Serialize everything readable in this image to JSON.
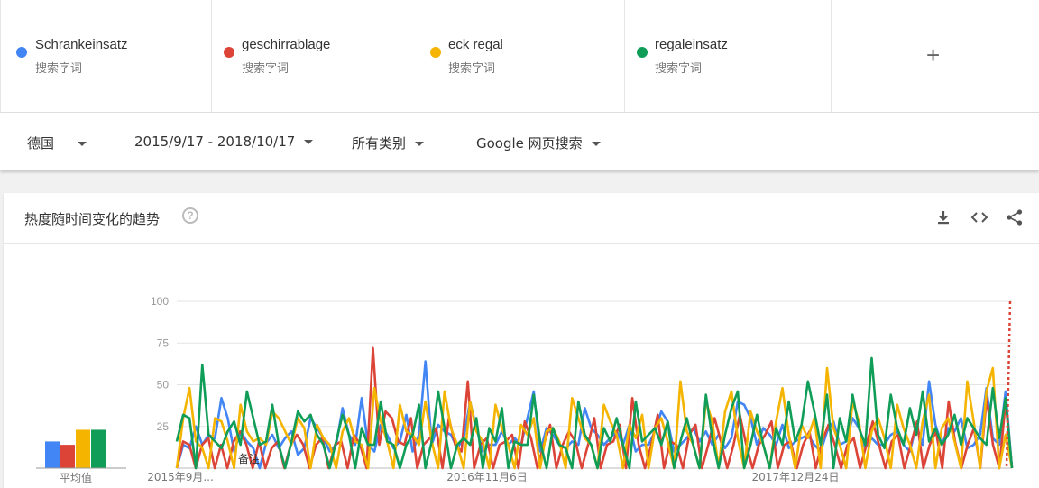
{
  "terms": [
    {
      "name": "Schrankeinsatz",
      "sub": "搜索字词",
      "color": "#4285f4"
    },
    {
      "name": "geschirrablage",
      "sub": "搜索字词",
      "color": "#db4437"
    },
    {
      "name": "eck regal",
      "sub": "搜索字词",
      "color": "#f4b400"
    },
    {
      "name": "regaleinsatz",
      "sub": "搜索字词",
      "color": "#0f9d58"
    }
  ],
  "add_term": "+",
  "filters": {
    "region": "德国",
    "date_range": "2015/9/17 - 2018/10/17",
    "category": "所有类别",
    "search_type": "Google 网页搜索"
  },
  "card": {
    "title": "热度随时间变化的趋势",
    "help": "?",
    "download_icon": "download-icon",
    "embed_icon": "embed-icon",
    "share_icon": "share-icon"
  },
  "avg_label": "平均值",
  "note_label": "备注",
  "chart_data": {
    "type": "line",
    "ylim": [
      0,
      100
    ],
    "y_ticks": [
      25,
      50,
      75,
      100
    ],
    "x_tick_labels": [
      "2015年9月...",
      "2016年11月6日",
      "2017年12月24日"
    ],
    "averages": [
      16,
      14,
      23,
      23
    ],
    "series": [
      {
        "name": "Schrankeinsatz",
        "color": "#4285f4",
        "values": [
          0,
          14,
          12,
          25,
          14,
          20,
          18,
          42,
          30,
          10,
          22,
          16,
          12,
          0,
          15,
          20,
          12,
          18,
          22,
          8,
          12,
          30,
          24,
          18,
          10,
          14,
          36,
          20,
          14,
          42,
          14,
          10,
          26,
          20,
          12,
          16,
          32,
          10,
          20,
          64,
          14,
          26,
          22,
          20,
          12,
          18,
          40,
          24,
          10,
          14,
          14,
          22,
          14,
          18,
          14,
          30,
          46,
          10,
          24,
          20,
          14,
          12,
          16,
          14,
          36,
          24,
          20,
          14,
          18,
          22,
          14,
          26,
          10,
          14,
          14,
          22,
          34,
          28,
          10,
          14,
          18,
          24,
          16,
          22,
          14,
          20,
          12,
          18,
          40,
          38,
          30,
          14,
          24,
          20,
          14,
          26,
          12,
          16,
          18,
          20,
          14,
          10,
          22,
          28,
          14,
          16,
          30,
          24,
          12,
          18,
          14,
          14,
          20,
          22,
          14,
          10,
          26,
          14,
          52,
          26,
          14,
          24,
          22,
          30,
          12,
          14,
          20,
          48,
          18,
          14,
          46,
          0
        ]
      },
      {
        "name": "geschirrablage",
        "color": "#db4437",
        "values": [
          0,
          16,
          14,
          0,
          14,
          18,
          0,
          14,
          0,
          16,
          22,
          14,
          0,
          16,
          0,
          12,
          16,
          0,
          14,
          20,
          14,
          0,
          14,
          18,
          0,
          14,
          16,
          0,
          20,
          14,
          0,
          72,
          14,
          34,
          30,
          16,
          14,
          30,
          0,
          14,
          18,
          24,
          0,
          30,
          14,
          10,
          52,
          0,
          14,
          18,
          0,
          14,
          16,
          20,
          0,
          28,
          18,
          0,
          14,
          26,
          0,
          14,
          22,
          16,
          0,
          14,
          30,
          0,
          14,
          16,
          26,
          0,
          42,
          14,
          0,
          14,
          32,
          0,
          16,
          14,
          0,
          20,
          26,
          0,
          14,
          30,
          16,
          0,
          14,
          32,
          14,
          0,
          14,
          20,
          28,
          0,
          14,
          16,
          0,
          14,
          22,
          0,
          16,
          26,
          14,
          0,
          14,
          18,
          0,
          14,
          28,
          14,
          0,
          16,
          20,
          0,
          14,
          28,
          0,
          14,
          22,
          0,
          40,
          16,
          0,
          14,
          24,
          0,
          42,
          14,
          0,
          40,
          0
        ]
      },
      {
        "name": "eck regal",
        "color": "#f4b400",
        "values": [
          0,
          30,
          48,
          16,
          12,
          0,
          30,
          28,
          16,
          0,
          38,
          22,
          16,
          18,
          14,
          34,
          30,
          22,
          14,
          30,
          24,
          0,
          26,
          18,
          14,
          0,
          22,
          30,
          16,
          14,
          0,
          48,
          28,
          16,
          0,
          38,
          22,
          20,
          14,
          40,
          16,
          0,
          46,
          24,
          14,
          0,
          40,
          22,
          16,
          0,
          38,
          24,
          14,
          0,
          26,
          20,
          30,
          0,
          22,
          24,
          16,
          0,
          42,
          30,
          18,
          14,
          0,
          38,
          28,
          20,
          0,
          26,
          18,
          32,
          0,
          24,
          30,
          16,
          0,
          52,
          22,
          14,
          0,
          40,
          28,
          0,
          34,
          46,
          18,
          0,
          34,
          22,
          14,
          0,
          28,
          48,
          20,
          0,
          26,
          18,
          30,
          0,
          60,
          24,
          14,
          0,
          40,
          28,
          0,
          22,
          30,
          18,
          0,
          38,
          24,
          14,
          0,
          28,
          44,
          0,
          24,
          30,
          16,
          0,
          52,
          28,
          0,
          46,
          60,
          0,
          20,
          0
        ]
      },
      {
        "name": "regaleinsatz",
        "color": "#0f9d58",
        "values": [
          16,
          32,
          30,
          0,
          62,
          20,
          16,
          12,
          22,
          28,
          14,
          46,
          30,
          14,
          16,
          38,
          14,
          0,
          16,
          34,
          28,
          32,
          20,
          14,
          0,
          16,
          32,
          20,
          0,
          24,
          14,
          14,
          40,
          16,
          14,
          0,
          14,
          20,
          38,
          0,
          16,
          46,
          24,
          0,
          14,
          18,
          14,
          30,
          0,
          24,
          16,
          36,
          0,
          16,
          14,
          14,
          44,
          16,
          0,
          24,
          14,
          12,
          0,
          40,
          20,
          14,
          0,
          24,
          16,
          30,
          14,
          0,
          40,
          16,
          20,
          24,
          14,
          28,
          0,
          16,
          30,
          14,
          0,
          44,
          18,
          0,
          20,
          36,
          46,
          0,
          14,
          32,
          14,
          0,
          24,
          14,
          40,
          16,
          26,
          52,
          34,
          14,
          44,
          0,
          30,
          16,
          44,
          24,
          14,
          66,
          20,
          12,
          44,
          24,
          14,
          36,
          20,
          46,
          16,
          24,
          14,
          20,
          32,
          14,
          30,
          24,
          18,
          14,
          48,
          18,
          42,
          0
        ]
      }
    ]
  }
}
